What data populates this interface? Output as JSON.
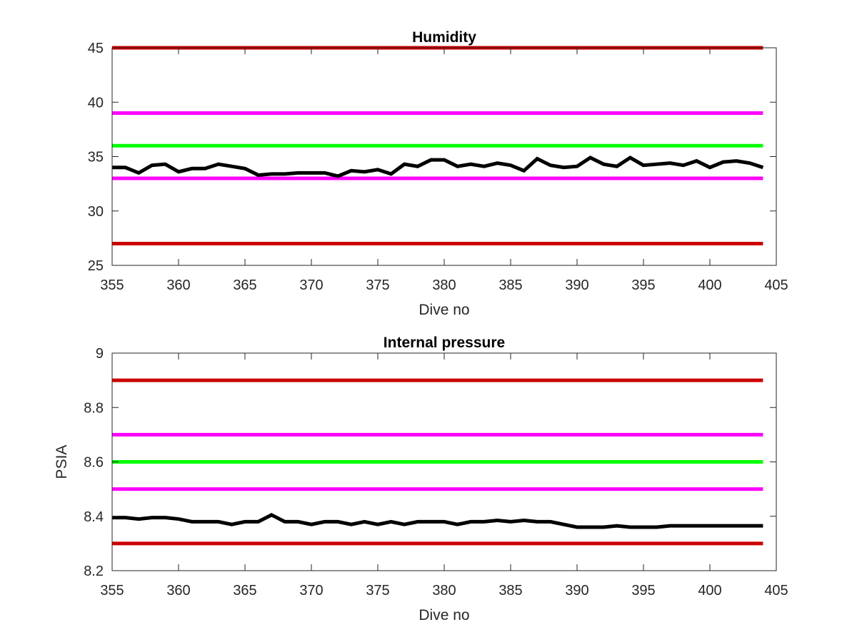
{
  "chart_data": [
    {
      "type": "line",
      "title": "Humidity",
      "xlabel": "Dive no",
      "ylabel": "",
      "xlim": [
        355,
        405
      ],
      "ylim": [
        25,
        45
      ],
      "xticks": [
        355,
        360,
        365,
        370,
        375,
        380,
        385,
        390,
        395,
        400,
        405
      ],
      "yticks": [
        25,
        30,
        35,
        40,
        45
      ],
      "xtick_labels": [
        "355",
        "360",
        "365",
        "370",
        "375",
        "380",
        "385",
        "390",
        "395",
        "400",
        "405"
      ],
      "ytick_labels": [
        "25",
        "30",
        "35",
        "40",
        "45"
      ],
      "grid": false,
      "legend": "none",
      "series": [
        {
          "color": "#cc0000",
          "x": [
            355,
            404
          ],
          "y": [
            45,
            45
          ]
        },
        {
          "color": "#ff00ff",
          "x": [
            355,
            404
          ],
          "y": [
            39,
            39
          ]
        },
        {
          "color": "#00ff00",
          "x": [
            355,
            404
          ],
          "y": [
            36,
            36
          ]
        },
        {
          "color": "#ff00ff",
          "x": [
            355,
            404
          ],
          "y": [
            33,
            33
          ]
        },
        {
          "color": "#cc0000",
          "x": [
            355,
            404
          ],
          "y": [
            27,
            27
          ]
        },
        {
          "color": "#000000",
          "x": [
            355,
            356,
            357,
            358,
            359,
            360,
            361,
            362,
            363,
            364,
            365,
            366,
            367,
            368,
            369,
            370,
            371,
            372,
            373,
            374,
            375,
            376,
            377,
            378,
            379,
            380,
            381,
            382,
            383,
            384,
            385,
            386,
            387,
            388,
            389,
            390,
            391,
            392,
            393,
            394,
            395,
            396,
            397,
            398,
            399,
            400,
            401,
            402,
            403,
            404
          ],
          "y": [
            34.0,
            34.0,
            33.5,
            34.2,
            34.3,
            33.6,
            33.9,
            33.9,
            34.3,
            34.1,
            33.9,
            33.3,
            33.4,
            33.4,
            33.5,
            33.5,
            33.5,
            33.2,
            33.7,
            33.6,
            33.8,
            33.4,
            34.3,
            34.1,
            34.7,
            34.7,
            34.1,
            34.3,
            34.1,
            34.4,
            34.2,
            33.7,
            34.8,
            34.2,
            34.0,
            34.1,
            34.9,
            34.3,
            34.1,
            34.9,
            34.2,
            34.3,
            34.4,
            34.2,
            34.6,
            34.0,
            34.5,
            34.6,
            34.4,
            34.0
          ]
        }
      ]
    },
    {
      "type": "line",
      "title": "Internal pressure",
      "xlabel": "Dive no",
      "ylabel": "PSIA",
      "xlim": [
        355,
        405
      ],
      "ylim": [
        8.2,
        9.0
      ],
      "xticks": [
        355,
        360,
        365,
        370,
        375,
        380,
        385,
        390,
        395,
        400,
        405
      ],
      "yticks": [
        8.2,
        8.4,
        8.6,
        8.8,
        9.0
      ],
      "xtick_labels": [
        "355",
        "360",
        "365",
        "370",
        "375",
        "380",
        "385",
        "390",
        "395",
        "400",
        "405"
      ],
      "ytick_labels": [
        "8.2",
        "8.4",
        "8.6",
        "8.8",
        "9"
      ],
      "grid": false,
      "legend": "none",
      "series": [
        {
          "color": "#cc0000",
          "x": [
            355,
            404
          ],
          "y": [
            8.9,
            8.9
          ]
        },
        {
          "color": "#ff00ff",
          "x": [
            355,
            404
          ],
          "y": [
            8.7,
            8.7
          ]
        },
        {
          "color": "#00ff00",
          "x": [
            355,
            404
          ],
          "y": [
            8.6,
            8.6
          ]
        },
        {
          "color": "#ff00ff",
          "x": [
            355,
            404
          ],
          "y": [
            8.5,
            8.5
          ]
        },
        {
          "color": "#cc0000",
          "x": [
            355,
            404
          ],
          "y": [
            8.3,
            8.3
          ]
        },
        {
          "color": "#000000",
          "x": [
            355,
            356,
            357,
            358,
            359,
            360,
            361,
            362,
            363,
            364,
            365,
            366,
            367,
            368,
            369,
            370,
            371,
            372,
            373,
            374,
            375,
            376,
            377,
            378,
            379,
            380,
            381,
            382,
            383,
            384,
            385,
            386,
            387,
            388,
            389,
            390,
            391,
            392,
            393,
            394,
            395,
            396,
            397,
            398,
            399,
            400,
            401,
            402,
            403,
            404
          ],
          "y": [
            8.395,
            8.395,
            8.39,
            8.395,
            8.395,
            8.39,
            8.38,
            8.38,
            8.38,
            8.37,
            8.38,
            8.38,
            8.405,
            8.38,
            8.38,
            8.37,
            8.38,
            8.38,
            8.37,
            8.38,
            8.37,
            8.38,
            8.37,
            8.38,
            8.38,
            8.38,
            8.37,
            8.38,
            8.38,
            8.385,
            8.38,
            8.385,
            8.38,
            8.38,
            8.37,
            8.36,
            8.36,
            8.36,
            8.365,
            8.36,
            8.36,
            8.36,
            8.365,
            8.365,
            8.365,
            8.365,
            8.365,
            8.365,
            8.365,
            8.365
          ]
        }
      ]
    }
  ]
}
